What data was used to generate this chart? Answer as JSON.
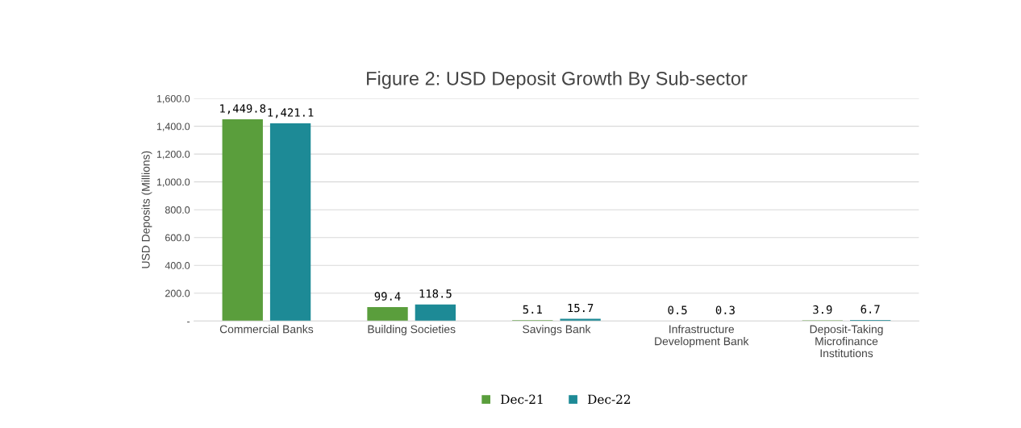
{
  "chart_data": {
    "type": "bar",
    "title": "Figure 2: USD Deposit Growth By Sub-sector",
    "ylabel": "USD Deposits (Millions)",
    "categories": [
      "Commercial Banks",
      "Building Societies",
      "Savings Bank",
      "Infrastructure\nDevelopment Bank",
      "Deposit-Taking\nMicrofinance\nInstitutions"
    ],
    "series": [
      {
        "name": "Dec-21",
        "color": "#5a9e3c",
        "values": [
          1449.8,
          99.4,
          5.1,
          0.5,
          3.9
        ],
        "value_labels": [
          "1,449.8",
          "99.4",
          "5.1",
          "0.5",
          "3.9"
        ]
      },
      {
        "name": "Dec-22",
        "color": "#1d8a96",
        "values": [
          1421.1,
          118.5,
          15.7,
          0.3,
          6.7
        ],
        "value_labels": [
          "1,421.1",
          "118.5",
          "15.7",
          "0.3",
          "6.7"
        ]
      }
    ],
    "ylim": [
      0,
      1600
    ],
    "yticks": [
      {
        "value": 0,
        "label": "-"
      },
      {
        "value": 200,
        "label": "200.0"
      },
      {
        "value": 400,
        "label": "400.0"
      },
      {
        "value": 600,
        "label": "600.0"
      },
      {
        "value": 800,
        "label": "800.0"
      },
      {
        "value": 1000,
        "label": "1,000.0"
      },
      {
        "value": 1200,
        "label": "1,200.0"
      },
      {
        "value": 1400,
        "label": "1,400.0"
      },
      {
        "value": 1600,
        "label": "1,600.0"
      }
    ],
    "grid": "y",
    "legend": "bottom"
  }
}
